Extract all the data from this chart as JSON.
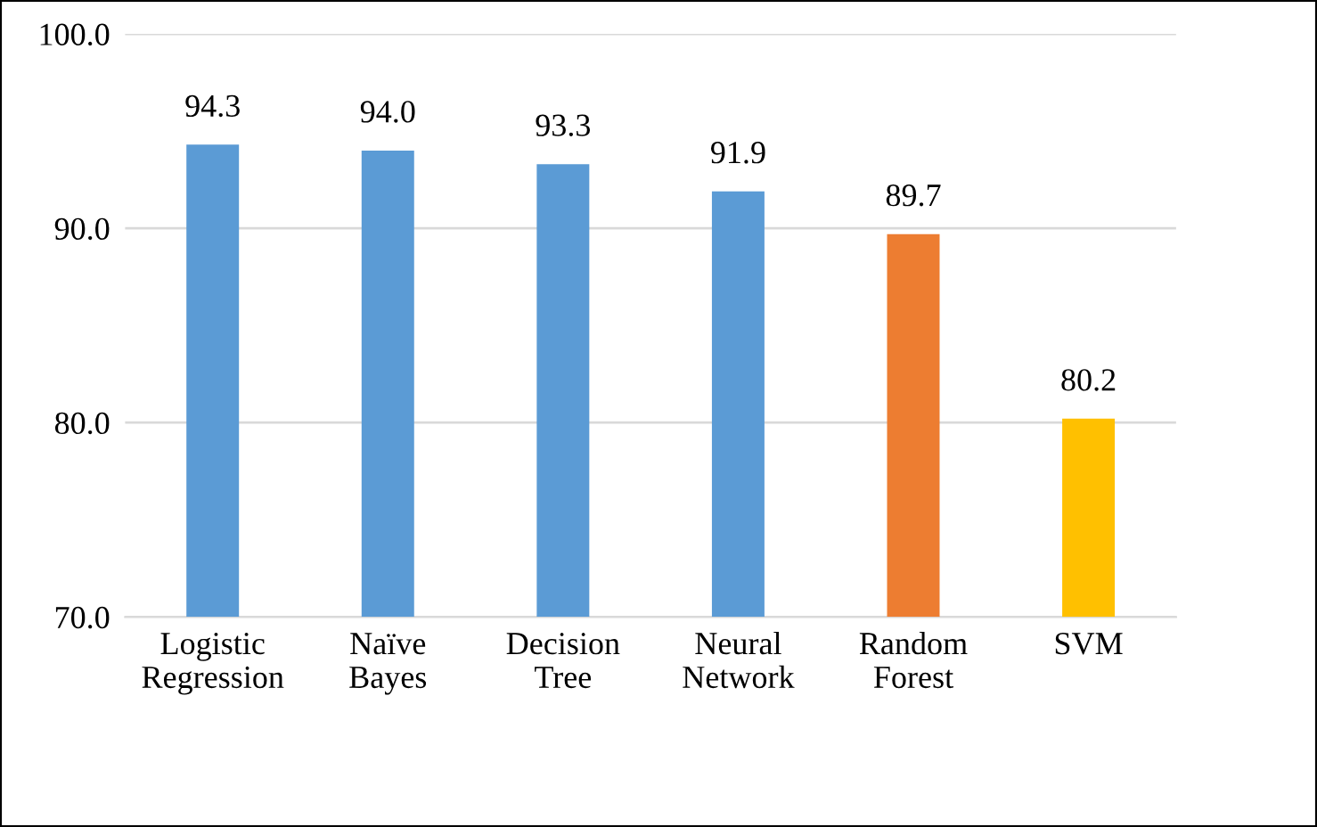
{
  "chart_data": {
    "type": "bar",
    "categories": [
      "Logistic\nRegression",
      "Naïve\nBayes",
      "Decision\nTree",
      "Neural\nNetwork",
      "Random\nForest",
      "SVM"
    ],
    "values": [
      94.3,
      94.0,
      93.3,
      91.9,
      89.7,
      80.2
    ],
    "colors": [
      "#5b9bd5",
      "#5b9bd5",
      "#5b9bd5",
      "#5b9bd5",
      "#ed7d31",
      "#ffc000"
    ],
    "ylim": [
      70,
      100
    ],
    "yticks": [
      {
        "value": 70,
        "label": "70.0"
      },
      {
        "value": 80,
        "label": "80.0"
      },
      {
        "value": 90,
        "label": "90.0"
      },
      {
        "value": 100,
        "label": "100.0"
      }
    ],
    "value_labels": [
      "94.3",
      "94.0",
      "93.3",
      "91.9",
      "89.7",
      "80.2"
    ],
    "grid": "y",
    "legend": false
  }
}
